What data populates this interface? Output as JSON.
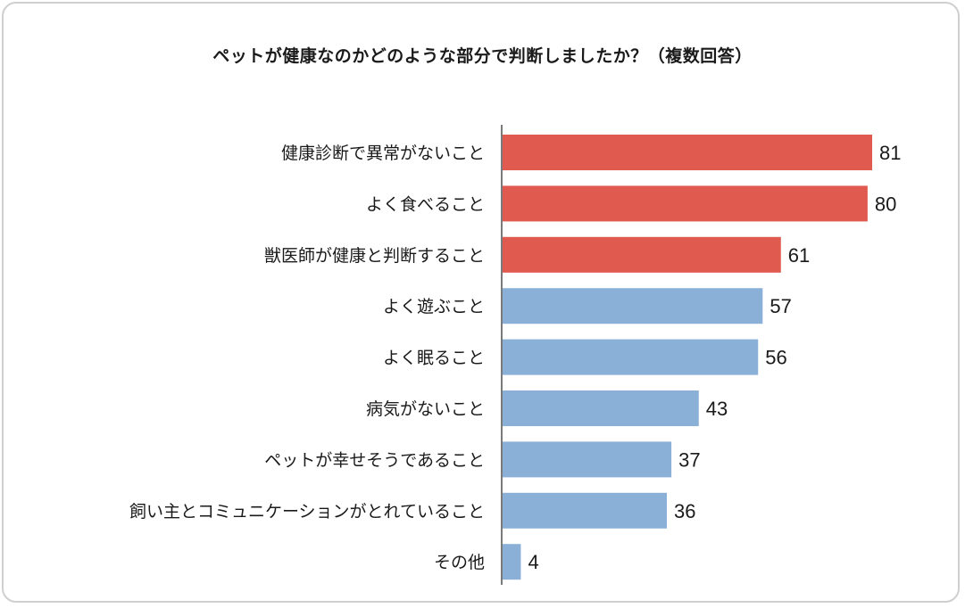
{
  "chart_data": {
    "type": "bar",
    "orientation": "horizontal",
    "title": "ペットが健康なのかどのような部分で判断しましたか？（複数回答）",
    "categories": [
      "健康診断で異常がないこと",
      "よく食べること",
      "獣医師が健康と判断すること",
      "よく遊ぶこと",
      "よく眠ること",
      "病気がないこと",
      "ペットが幸せそうであること",
      "飼い主とコミュニケーションがとれていること",
      "その他"
    ],
    "values": [
      81,
      80,
      61,
      57,
      56,
      43,
      37,
      36,
      4
    ],
    "highlight_count": 3,
    "xlim": [
      0,
      81
    ],
    "grid": false,
    "legend": "none",
    "colors": {
      "highlight": "#e05a4f",
      "normal": "#8bb0d8",
      "axis": "#7a7a7a"
    }
  }
}
